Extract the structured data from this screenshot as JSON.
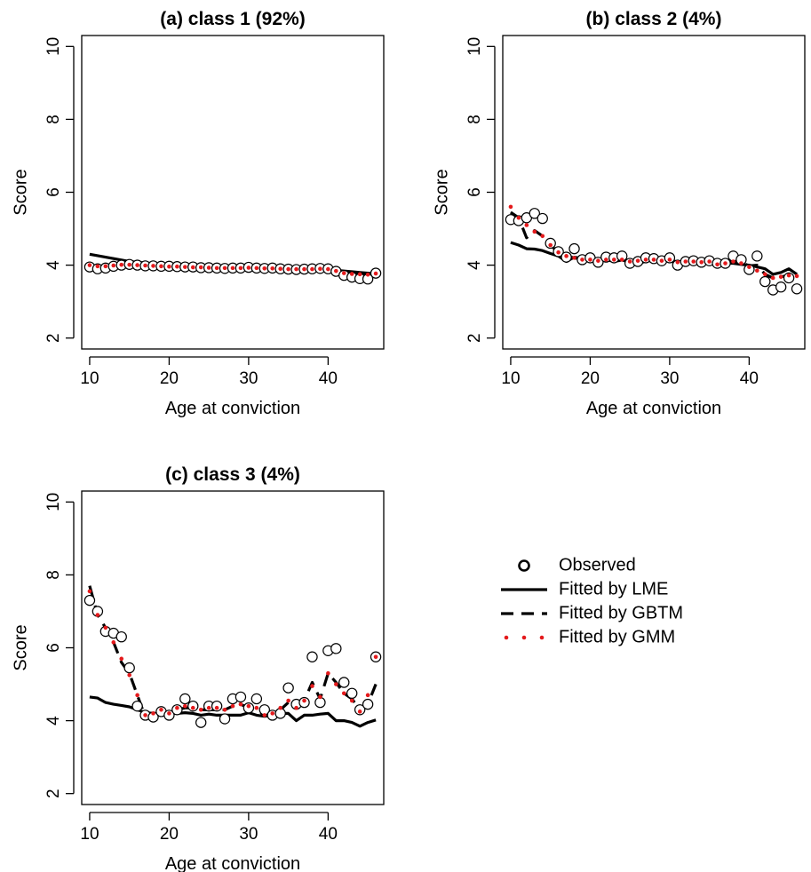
{
  "chart_data": [
    {
      "type": "line",
      "title": "(a) class 1 (92%)",
      "xlabel": "Age at conviction",
      "ylabel": "Score",
      "xlim": [
        9,
        47
      ],
      "ylim": [
        1.7,
        10.3
      ],
      "xticks": [
        10,
        20,
        30,
        40
      ],
      "yticks": [
        2,
        4,
        6,
        8,
        10
      ],
      "series": [
        {
          "name": "Observed",
          "style": "circle",
          "color": "#000000",
          "x": [
            10,
            11,
            12,
            13,
            14,
            15,
            16,
            17,
            18,
            19,
            20,
            21,
            22,
            23,
            24,
            25,
            26,
            27,
            28,
            29,
            30,
            31,
            32,
            33,
            34,
            35,
            36,
            37,
            38,
            39,
            40,
            41,
            42,
            43,
            44,
            45,
            46
          ],
          "y": [
            3.95,
            3.9,
            3.92,
            3.97,
            4.0,
            4.02,
            4.0,
            3.98,
            3.98,
            3.97,
            3.97,
            3.96,
            3.95,
            3.95,
            3.93,
            3.93,
            3.92,
            3.91,
            3.92,
            3.92,
            3.94,
            3.92,
            3.91,
            3.92,
            3.9,
            3.89,
            3.88,
            3.89,
            3.9,
            3.91,
            3.9,
            3.83,
            3.72,
            3.67,
            3.63,
            3.62,
            3.78
          ]
        },
        {
          "name": "Fitted by LME",
          "style": "solid",
          "color": "#000000",
          "x": [
            10,
            11,
            12,
            13,
            14,
            15,
            16,
            17,
            18,
            19,
            20,
            21,
            22,
            23,
            24,
            25,
            26,
            27,
            28,
            29,
            30,
            31,
            32,
            33,
            34,
            35,
            36,
            37,
            38,
            39,
            40,
            41,
            42,
            43,
            44,
            45,
            46
          ],
          "y": [
            4.3,
            4.26,
            4.22,
            4.18,
            4.14,
            4.1,
            4.08,
            4.06,
            4.04,
            4.03,
            4.02,
            4.01,
            4.0,
            3.99,
            3.98,
            3.97,
            3.96,
            3.95,
            3.95,
            3.94,
            3.94,
            3.93,
            3.93,
            3.92,
            3.92,
            3.91,
            3.91,
            3.9,
            3.9,
            3.89,
            3.88,
            3.86,
            3.84,
            3.82,
            3.8,
            3.78,
            3.76
          ]
        },
        {
          "name": "Fitted by GBTM",
          "style": "dashed",
          "color": "#000000",
          "x": [
            10,
            11,
            12,
            13,
            14,
            15,
            16,
            17,
            18,
            19,
            20,
            21,
            22,
            23,
            24,
            25,
            26,
            27,
            28,
            29,
            30,
            31,
            32,
            33,
            34,
            35,
            36,
            37,
            38,
            39,
            40,
            41,
            42,
            43,
            44,
            45,
            46
          ],
          "y": [
            3.98,
            3.95,
            3.96,
            3.99,
            4.01,
            4.01,
            4.0,
            3.99,
            3.98,
            3.97,
            3.96,
            3.96,
            3.95,
            3.94,
            3.94,
            3.93,
            3.92,
            3.92,
            3.92,
            3.92,
            3.93,
            3.92,
            3.91,
            3.91,
            3.9,
            3.89,
            3.89,
            3.89,
            3.89,
            3.9,
            3.89,
            3.84,
            3.78,
            3.76,
            3.75,
            3.74,
            3.76
          ]
        },
        {
          "name": "Fitted by GMM",
          "style": "dotted",
          "color": "#e41a1c",
          "x": [
            10,
            11,
            12,
            13,
            14,
            15,
            16,
            17,
            18,
            19,
            20,
            21,
            22,
            23,
            24,
            25,
            26,
            27,
            28,
            29,
            30,
            31,
            32,
            33,
            34,
            35,
            36,
            37,
            38,
            39,
            40,
            41,
            42,
            43,
            44,
            45,
            46
          ],
          "y": [
            4.0,
            3.97,
            3.97,
            3.99,
            4.01,
            4.01,
            4.0,
            3.99,
            3.98,
            3.97,
            3.96,
            3.96,
            3.95,
            3.94,
            3.94,
            3.93,
            3.92,
            3.92,
            3.92,
            3.92,
            3.93,
            3.92,
            3.91,
            3.91,
            3.9,
            3.89,
            3.89,
            3.89,
            3.89,
            3.9,
            3.89,
            3.84,
            3.78,
            3.76,
            3.75,
            3.74,
            3.77
          ]
        }
      ]
    },
    {
      "type": "line",
      "title": "(b) class 2 (4%)",
      "xlabel": "Age at conviction",
      "ylabel": "Score",
      "xlim": [
        9,
        47
      ],
      "ylim": [
        1.7,
        10.3
      ],
      "xticks": [
        10,
        20,
        30,
        40
      ],
      "yticks": [
        2,
        4,
        6,
        8,
        10
      ],
      "series": [
        {
          "name": "Observed",
          "style": "circle",
          "color": "#000000",
          "x": [
            10,
            11,
            12,
            13,
            14,
            15,
            16,
            17,
            18,
            19,
            20,
            21,
            22,
            23,
            24,
            25,
            26,
            27,
            28,
            29,
            30,
            31,
            32,
            33,
            34,
            35,
            36,
            37,
            38,
            39,
            40,
            41,
            42,
            43,
            44,
            45,
            46
          ],
          "y": [
            5.25,
            5.22,
            5.3,
            5.42,
            5.28,
            4.6,
            4.37,
            4.22,
            4.45,
            4.15,
            4.2,
            4.08,
            4.22,
            4.2,
            4.25,
            4.05,
            4.1,
            4.2,
            4.18,
            4.12,
            4.2,
            4.0,
            4.1,
            4.12,
            4.08,
            4.12,
            4.05,
            4.05,
            4.25,
            4.15,
            3.88,
            4.25,
            3.55,
            3.32,
            3.4,
            3.65,
            3.35
          ]
        },
        {
          "name": "Fitted by LME",
          "style": "solid",
          "color": "#000000",
          "x": [
            10,
            11,
            12,
            13,
            14,
            15,
            16,
            17,
            18,
            19,
            20,
            21,
            22,
            23,
            24,
            25,
            26,
            27,
            28,
            29,
            30,
            31,
            32,
            33,
            34,
            35,
            36,
            37,
            38,
            39,
            40,
            41,
            42,
            43,
            44,
            45,
            46
          ],
          "y": [
            4.62,
            4.55,
            4.45,
            4.44,
            4.4,
            4.32,
            4.25,
            4.1,
            4.22,
            4.18,
            4.12,
            4.1,
            4.15,
            4.1,
            4.14,
            4.08,
            4.05,
            4.1,
            4.15,
            4.1,
            4.12,
            4.05,
            4.08,
            4.1,
            4.05,
            4.08,
            3.95,
            4.05,
            4.05,
            4.02,
            4.0,
            3.95,
            3.9,
            3.75,
            3.8,
            3.9,
            3.75
          ]
        },
        {
          "name": "Fitted by GBTM",
          "style": "dashed",
          "color": "#000000",
          "x": [
            10,
            11,
            12,
            13,
            14,
            15,
            16,
            17,
            18,
            19,
            20,
            21,
            22,
            23,
            24,
            25,
            26,
            27,
            28,
            29,
            30,
            31,
            32,
            33,
            34,
            35,
            36,
            37,
            38,
            39,
            40,
            41,
            42,
            43,
            44,
            45,
            46
          ],
          "y": [
            5.45,
            5.3,
            4.75,
            4.95,
            4.8,
            4.55,
            4.35,
            4.25,
            4.2,
            4.15,
            4.15,
            4.12,
            4.15,
            4.15,
            4.15,
            4.1,
            4.12,
            4.15,
            4.15,
            4.12,
            4.15,
            4.08,
            4.1,
            4.1,
            4.08,
            4.1,
            4.02,
            4.05,
            4.12,
            4.08,
            3.98,
            4.0,
            3.75,
            3.65,
            3.68,
            3.72,
            3.7
          ]
        },
        {
          "name": "Fitted by GMM",
          "style": "dotted",
          "color": "#e41a1c",
          "x": [
            10,
            11,
            12,
            13,
            14,
            15,
            16,
            17,
            18,
            19,
            20,
            21,
            22,
            23,
            24,
            25,
            26,
            27,
            28,
            29,
            30,
            31,
            32,
            33,
            34,
            35,
            36,
            37,
            38,
            39,
            40,
            41,
            42,
            43,
            44,
            45,
            46
          ],
          "y": [
            5.6,
            5.3,
            5.1,
            4.92,
            4.8,
            4.55,
            4.35,
            4.25,
            4.2,
            4.15,
            4.15,
            4.12,
            4.15,
            4.15,
            4.15,
            4.1,
            4.12,
            4.15,
            4.15,
            4.12,
            4.15,
            4.08,
            4.1,
            4.1,
            4.08,
            4.1,
            4.02,
            4.05,
            4.1,
            4.05,
            3.95,
            3.85,
            3.75,
            3.65,
            3.68,
            3.72,
            3.7
          ]
        }
      ]
    },
    {
      "type": "line",
      "title": "(c) class 3 (4%)",
      "xlabel": "Age at conviction",
      "ylabel": "Score",
      "xlim": [
        9,
        47
      ],
      "ylim": [
        1.7,
        10.3
      ],
      "xticks": [
        10,
        20,
        30,
        40
      ],
      "yticks": [
        2,
        4,
        6,
        8,
        10
      ],
      "series": [
        {
          "name": "Observed",
          "style": "circle",
          "color": "#000000",
          "x": [
            10,
            11,
            12,
            13,
            14,
            15,
            16,
            17,
            18,
            19,
            20,
            21,
            22,
            23,
            24,
            25,
            26,
            27,
            28,
            29,
            30,
            31,
            32,
            33,
            34,
            35,
            36,
            37,
            38,
            39,
            40,
            41,
            42,
            43,
            44,
            45,
            46
          ],
          "y": [
            7.3,
            7.0,
            6.45,
            6.4,
            6.3,
            5.45,
            4.4,
            4.15,
            4.1,
            4.25,
            4.15,
            4.3,
            4.6,
            4.4,
            3.95,
            4.4,
            4.4,
            4.05,
            4.6,
            4.65,
            4.35,
            4.6,
            4.3,
            4.15,
            4.2,
            4.9,
            4.45,
            4.5,
            5.75,
            4.5,
            5.92,
            5.98,
            5.05,
            4.75,
            4.3,
            4.45,
            5.75
          ]
        },
        {
          "name": "Fitted by LME",
          "style": "solid",
          "color": "#000000",
          "x": [
            10,
            11,
            12,
            13,
            14,
            15,
            16,
            17,
            18,
            19,
            20,
            21,
            22,
            23,
            24,
            25,
            26,
            27,
            28,
            29,
            30,
            31,
            32,
            33,
            34,
            35,
            36,
            37,
            38,
            39,
            40,
            41,
            42,
            43,
            44,
            45,
            46
          ],
          "y": [
            4.65,
            4.62,
            4.5,
            4.45,
            4.42,
            4.38,
            4.3,
            4.22,
            4.2,
            4.18,
            4.2,
            4.2,
            4.22,
            4.2,
            4.15,
            4.18,
            4.15,
            4.15,
            4.15,
            4.15,
            4.22,
            4.15,
            4.12,
            4.15,
            4.2,
            4.2,
            4.0,
            4.15,
            4.15,
            4.18,
            4.2,
            4.0,
            4.0,
            3.95,
            3.85,
            3.95,
            4.02
          ]
        },
        {
          "name": "Fitted by GBTM",
          "style": "dashed",
          "color": "#000000",
          "x": [
            10,
            11,
            12,
            13,
            14,
            15,
            16,
            17,
            18,
            19,
            20,
            21,
            22,
            23,
            24,
            25,
            26,
            27,
            28,
            29,
            30,
            31,
            32,
            33,
            34,
            35,
            36,
            37,
            38,
            39,
            40,
            41,
            42,
            43,
            44,
            45,
            46
          ],
          "y": [
            7.7,
            6.9,
            6.55,
            6.15,
            5.6,
            5.3,
            4.7,
            4.1,
            4.15,
            4.25,
            4.15,
            4.3,
            4.35,
            4.35,
            4.3,
            4.3,
            4.3,
            4.3,
            4.4,
            4.45,
            4.35,
            4.3,
            4.15,
            4.2,
            4.3,
            4.5,
            4.4,
            4.55,
            5.05,
            4.6,
            5.3,
            5.05,
            4.75,
            4.6,
            4.3,
            4.45,
            5.0
          ]
        },
        {
          "name": "Fitted by GMM",
          "style": "dotted",
          "color": "#e41a1c",
          "x": [
            10,
            11,
            12,
            13,
            14,
            15,
            16,
            17,
            18,
            19,
            20,
            21,
            22,
            23,
            24,
            25,
            26,
            27,
            28,
            29,
            30,
            31,
            32,
            33,
            34,
            35,
            36,
            37,
            38,
            39,
            40,
            41,
            42,
            43,
            44,
            45,
            46
          ],
          "y": [
            7.55,
            6.9,
            6.55,
            6.15,
            5.7,
            5.25,
            4.7,
            4.15,
            4.2,
            4.3,
            4.2,
            4.35,
            4.4,
            4.35,
            4.3,
            4.35,
            4.35,
            4.3,
            4.4,
            4.45,
            4.4,
            4.35,
            4.15,
            4.2,
            4.35,
            4.55,
            4.35,
            4.55,
            4.95,
            4.65,
            5.3,
            5.0,
            4.75,
            4.55,
            4.25,
            4.7,
            5.75
          ]
        }
      ]
    }
  ],
  "legend": {
    "items": [
      {
        "label": "Observed",
        "style": "circle",
        "color": "#000000"
      },
      {
        "label": "Fitted by LME",
        "style": "solid",
        "color": "#000000"
      },
      {
        "label": "Fitted by GBTM",
        "style": "dashed",
        "color": "#000000"
      },
      {
        "label": "Fitted by GMM",
        "style": "dotted",
        "color": "#e41a1c"
      }
    ]
  }
}
